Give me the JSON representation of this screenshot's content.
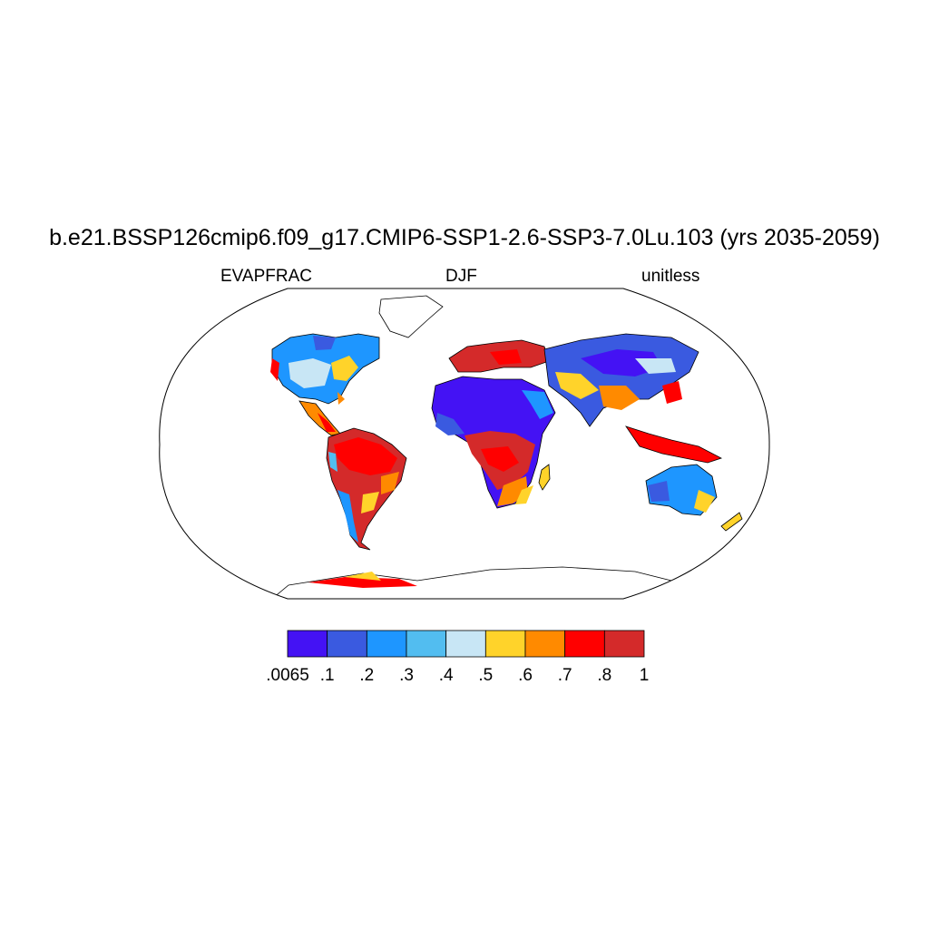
{
  "title": "b.e21.BSSP126cmip6.f09_g17.CMIP6-SSP1-2.6-SSP3-7.0Lu.103 (yrs 2035-2059)",
  "left_string": "EVAPFRAC",
  "center_string": "DJF",
  "right_string": "unitless",
  "colorbar": {
    "colors": [
      "#4412f4",
      "#3a5ae0",
      "#1e96ff",
      "#52bdf0",
      "#c8e6f5",
      "#ffd32a",
      "#ff8a00",
      "#ff0000",
      "#d42a2a"
    ],
    "labels": [
      ".0065",
      ".1",
      ".2",
      ".3",
      ".4",
      ".5",
      ".6",
      ".7",
      ".8",
      "1"
    ]
  },
  "map": {
    "projection": "Robinson",
    "variable": "EVAPFRAC",
    "season": "DJF"
  }
}
